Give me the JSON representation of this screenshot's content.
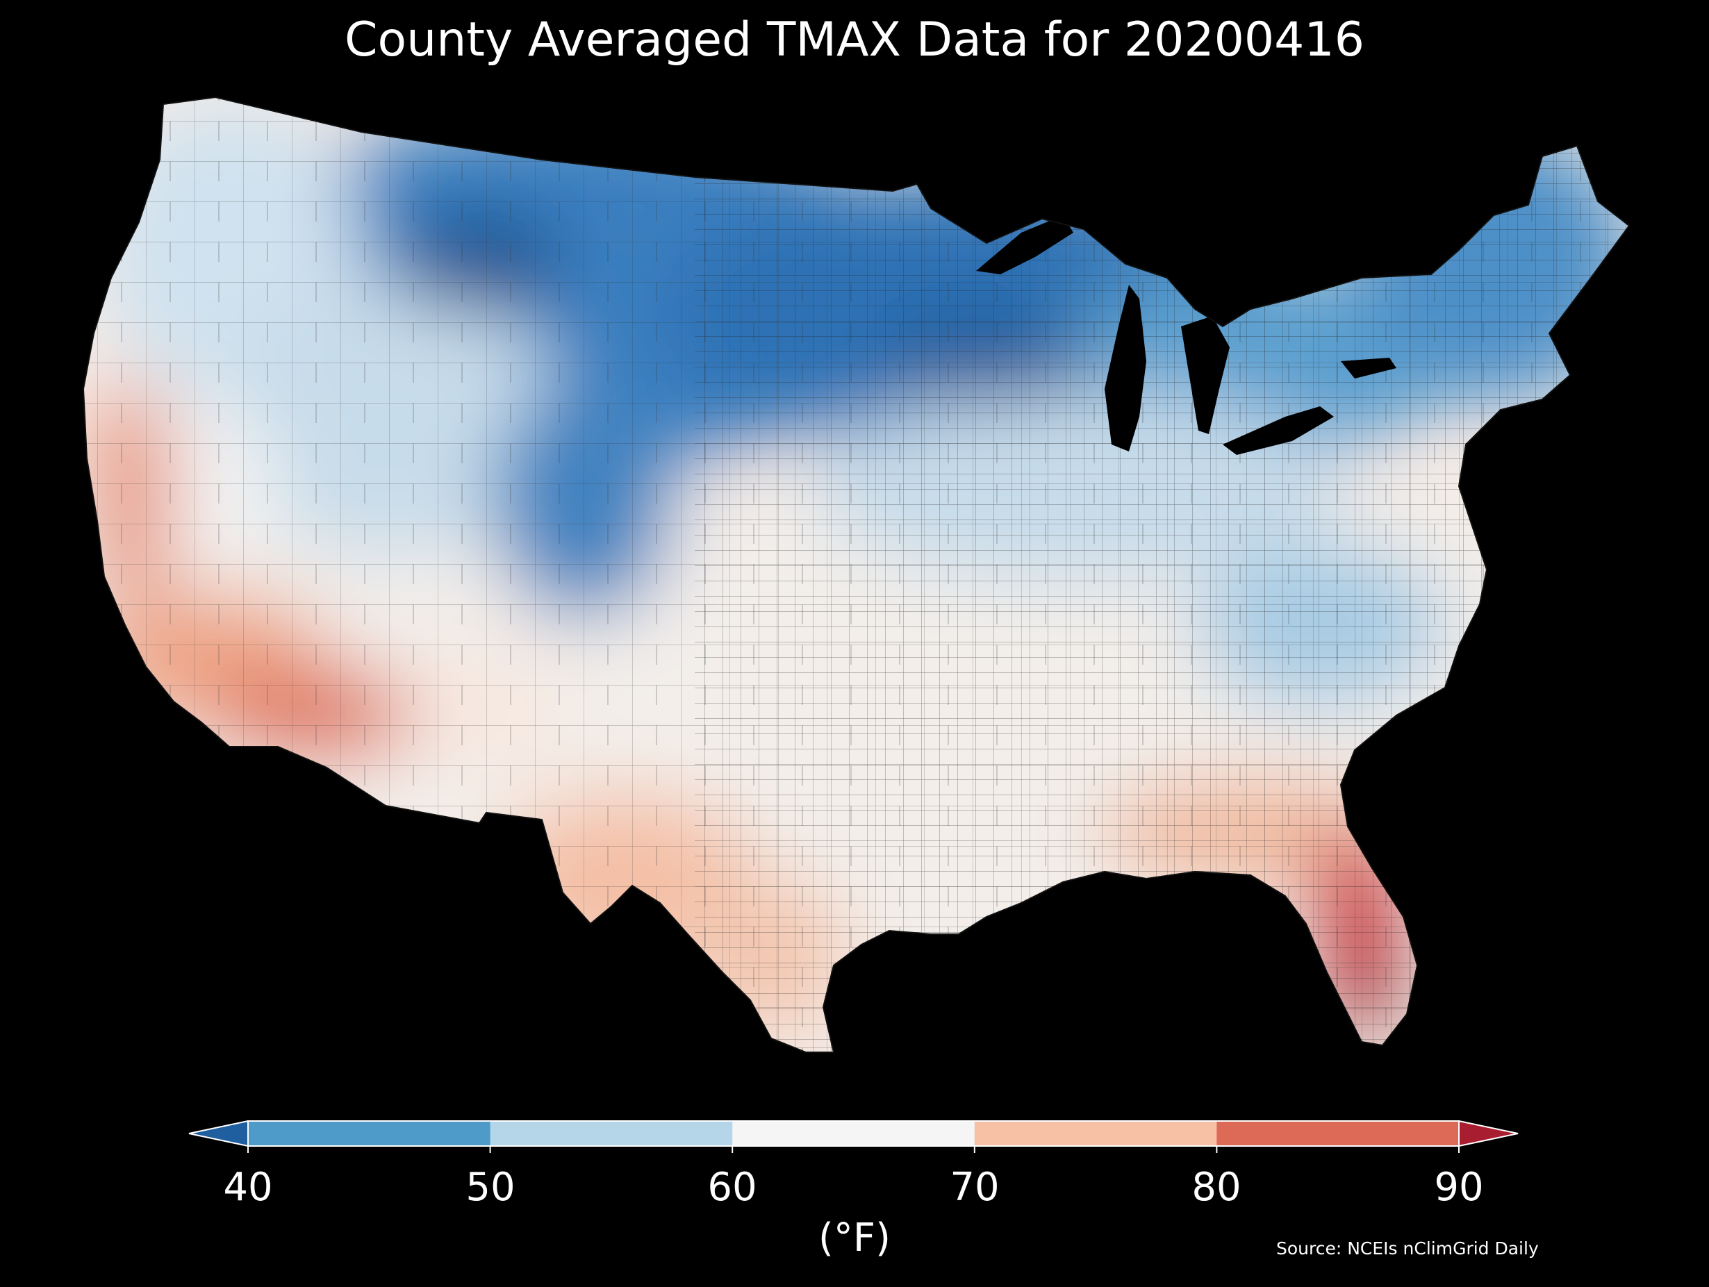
{
  "title": "County Averaged TMAX Data for 20200416",
  "colorbar": {
    "ticks": [
      "40",
      "50",
      "60",
      "70",
      "80",
      "90"
    ],
    "units": "(°F)",
    "bins": [
      {
        "range": "<40",
        "color": "#1f5fa0"
      },
      {
        "range": "40-50",
        "color": "#4e9ac8"
      },
      {
        "range": "50-60",
        "color": "#b5d5e8"
      },
      {
        "range": "60-70",
        "color": "#f5f5f5"
      },
      {
        "range": "70-80",
        "color": "#f6c1a4"
      },
      {
        "range": "80-90",
        "color": "#dd6a57"
      },
      {
        "range": ">90",
        "color": "#a91d30"
      }
    ]
  },
  "source": "Source: NCEIs nClimGrid Daily",
  "map": {
    "region": "Contiguous United States",
    "variable": "TMAX",
    "date": "20200416",
    "pattern": [
      {
        "area": "Northern Rockies / Northern Plains / Upper Midwest",
        "bin": "<40"
      },
      {
        "area": "Northeast / Great Lakes / Central Rockies",
        "bin": "40-50"
      },
      {
        "area": "Pacific Northwest / Great Basin / Ohio Valley",
        "bin": "50-60"
      },
      {
        "area": "Central Plains / Mid-South / Southeast interior",
        "bin": "60-70"
      },
      {
        "area": "California coast / Desert Southwest / Texas / Gulf Coast",
        "bin": "70-80"
      },
      {
        "area": "Southern Arizona / Central Valley / Florida peninsula",
        "bin": "80-90"
      },
      {
        "area": "South Florida",
        "bin": ">90"
      }
    ]
  }
}
